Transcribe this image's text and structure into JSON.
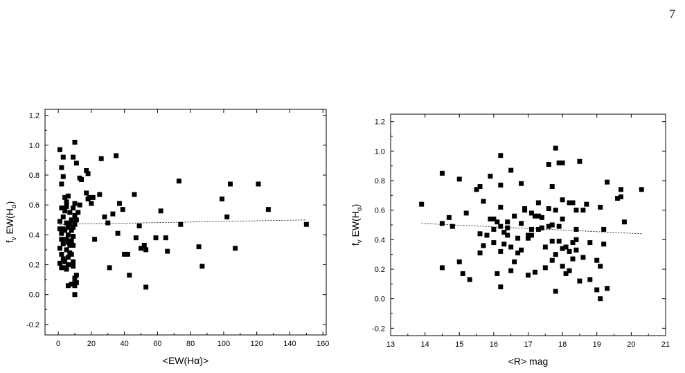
{
  "page": {
    "number": "7"
  },
  "chart_data": [
    {
      "type": "scatter",
      "xlabel": "<EW(Hα)>",
      "ylabel": "f_v EW(H_α)",
      "ylabel_parts": {
        "main": "f",
        "main_sub": "v",
        "mid": " EW(H",
        "sub": "α",
        "end": ")"
      },
      "xlim": [
        -8,
        162
      ],
      "ylim": [
        -0.27,
        1.24
      ],
      "xticks": [
        0,
        20,
        40,
        60,
        80,
        100,
        120,
        140,
        160
      ],
      "yticks": [
        -0.2,
        0.0,
        0.2,
        0.4,
        0.6,
        0.8,
        1.0,
        1.2
      ],
      "xtick_labels": [
        "0",
        "20",
        "40",
        "60",
        "80",
        "100",
        "120",
        "140",
        "160"
      ],
      "ytick_labels": [
        "-0.2",
        "0.0",
        "0.2",
        "0.4",
        "0.6",
        "0.8",
        "1.0",
        "1.2"
      ],
      "fit_line": {
        "style": "dashed",
        "points": [
          [
            1,
            0.47
          ],
          [
            150,
            0.5
          ]
        ]
      },
      "series": [
        {
          "marker": "filled-square",
          "points": [
            [
              1,
              0.97
            ],
            [
              2,
              0.85
            ],
            [
              3,
              0.92
            ],
            [
              3,
              0.79
            ],
            [
              2,
              0.74
            ],
            [
              4,
              0.65
            ],
            [
              2,
              0.58
            ],
            [
              3,
              0.52
            ],
            [
              1,
              0.49
            ],
            [
              1,
              0.44
            ],
            [
              2,
              0.41
            ],
            [
              2,
              0.37
            ],
            [
              3,
              0.34
            ],
            [
              1,
              0.31
            ],
            [
              2,
              0.27
            ],
            [
              3,
              0.24
            ],
            [
              1,
              0.21
            ],
            [
              2,
              0.18
            ],
            [
              4,
              0.18
            ],
            [
              3,
              0.44
            ],
            [
              4,
              0.56
            ],
            [
              5,
              0.62
            ],
            [
              5,
              0.59
            ],
            [
              6,
              0.66
            ],
            [
              5,
              0.48
            ],
            [
              6,
              0.45
            ],
            [
              4,
              0.43
            ],
            [
              6,
              0.4
            ],
            [
              5,
              0.37
            ],
            [
              6,
              0.35
            ],
            [
              7,
              0.33
            ],
            [
              5,
              0.3
            ],
            [
              7,
              0.28
            ],
            [
              6,
              0.25
            ],
            [
              4,
              0.22
            ],
            [
              6,
              0.2
            ],
            [
              5,
              0.17
            ],
            [
              7,
              0.55
            ],
            [
              8,
              0.5
            ],
            [
              7,
              0.47
            ],
            [
              8,
              0.43
            ],
            [
              9,
              0.39
            ],
            [
              8,
              0.36
            ],
            [
              9,
              0.33
            ],
            [
              8,
              0.27
            ],
            [
              9,
              0.22
            ],
            [
              8,
              0.2
            ],
            [
              9,
              0.19
            ],
            [
              10,
              1.02
            ],
            [
              9,
              0.92
            ],
            [
              11,
              0.88
            ],
            [
              10,
              0.61
            ],
            [
              9,
              0.58
            ],
            [
              10,
              0.53
            ],
            [
              11,
              0.5
            ],
            [
              10,
              0.48
            ],
            [
              9,
              0.45
            ],
            [
              10,
              0.47
            ],
            [
              11,
              0.13
            ],
            [
              10,
              0.11
            ],
            [
              10,
              0.09
            ],
            [
              11,
              0.08
            ],
            [
              10,
              0.06
            ],
            [
              10,
              0.0
            ],
            [
              6,
              0.06
            ],
            [
              8,
              0.07
            ],
            [
              12,
              0.55
            ],
            [
              13,
              0.6
            ],
            [
              13,
              0.78
            ],
            [
              14,
              0.77
            ],
            [
              17,
              0.83
            ],
            [
              18,
              0.81
            ],
            [
              17,
              0.68
            ],
            [
              18,
              0.64
            ],
            [
              19,
              0.65
            ],
            [
              20,
              0.61
            ],
            [
              21,
              0.65
            ],
            [
              22,
              0.37
            ],
            [
              25,
              0.67
            ],
            [
              26,
              0.91
            ],
            [
              28,
              0.52
            ],
            [
              30,
              0.48
            ],
            [
              31,
              0.18
            ],
            [
              33,
              0.54
            ],
            [
              35,
              0.93
            ],
            [
              36,
              0.41
            ],
            [
              37,
              0.61
            ],
            [
              39,
              0.57
            ],
            [
              40,
              0.27
            ],
            [
              42,
              0.27
            ],
            [
              43,
              0.13
            ],
            [
              46,
              0.67
            ],
            [
              47,
              0.38
            ],
            [
              49,
              0.46
            ],
            [
              50,
              0.31
            ],
            [
              52,
              0.33
            ],
            [
              53,
              0.3
            ],
            [
              53,
              0.05
            ],
            [
              59,
              0.38
            ],
            [
              62,
              0.56
            ],
            [
              65,
              0.38
            ],
            [
              66,
              0.29
            ],
            [
              73,
              0.76
            ],
            [
              74,
              0.47
            ],
            [
              85,
              0.32
            ],
            [
              87,
              0.19
            ],
            [
              99,
              0.64
            ],
            [
              102,
              0.52
            ],
            [
              104,
              0.74
            ],
            [
              107,
              0.31
            ],
            [
              121,
              0.74
            ],
            [
              127,
              0.57
            ],
            [
              150,
              0.47
            ]
          ]
        }
      ]
    },
    {
      "type": "scatter",
      "xlabel": "<R> mag",
      "ylabel": "f_v EW(H_α)",
      "ylabel_parts": {
        "main": "f",
        "main_sub": "v",
        "mid": " EW(H",
        "sub": "α",
        "end": ")"
      },
      "xlim": [
        13,
        21
      ],
      "ylim": [
        -0.25,
        1.25
      ],
      "xticks": [
        13,
        14,
        15,
        16,
        17,
        18,
        19,
        20,
        21
      ],
      "yticks": [
        -0.2,
        0.0,
        0.2,
        0.4,
        0.6,
        0.8,
        1.0,
        1.2
      ],
      "xtick_labels": [
        "13",
        "14",
        "15",
        "16",
        "17",
        "18",
        "19",
        "20",
        "21"
      ],
      "ytick_labels": [
        "-0.2",
        "0.0",
        "0.2",
        "0.4",
        "0.6",
        "0.8",
        "1.0",
        "1.2"
      ],
      "fit_line": {
        "style": "dashed",
        "points": [
          [
            13.9,
            0.51
          ],
          [
            20.3,
            0.44
          ]
        ]
      },
      "series": [
        {
          "marker": "filled-square",
          "points": [
            [
              13.9,
              0.64
            ],
            [
              14.5,
              0.85
            ],
            [
              14.5,
              0.51
            ],
            [
              14.5,
              0.21
            ],
            [
              14.7,
              0.55
            ],
            [
              14.8,
              0.49
            ],
            [
              15.0,
              0.81
            ],
            [
              15.0,
              0.25
            ],
            [
              15.1,
              0.17
            ],
            [
              15.2,
              0.58
            ],
            [
              15.3,
              0.13
            ],
            [
              15.5,
              0.74
            ],
            [
              15.6,
              0.76
            ],
            [
              15.6,
              0.44
            ],
            [
              15.6,
              0.31
            ],
            [
              15.7,
              0.66
            ],
            [
              15.7,
              0.36
            ],
            [
              15.8,
              0.43
            ],
            [
              15.9,
              0.83
            ],
            [
              15.9,
              0.54
            ],
            [
              16.0,
              0.54
            ],
            [
              16.0,
              0.47
            ],
            [
              16.0,
              0.38
            ],
            [
              16.1,
              0.17
            ],
            [
              16.1,
              0.52
            ],
            [
              16.2,
              0.97
            ],
            [
              16.2,
              0.77
            ],
            [
              16.2,
              0.62
            ],
            [
              16.2,
              0.49
            ],
            [
              16.2,
              0.32
            ],
            [
              16.2,
              0.08
            ],
            [
              16.3,
              0.45
            ],
            [
              16.3,
              0.37
            ],
            [
              16.4,
              0.52
            ],
            [
              16.4,
              0.48
            ],
            [
              16.4,
              0.43
            ],
            [
              16.5,
              0.35
            ],
            [
              16.5,
              0.87
            ],
            [
              16.5,
              0.19
            ],
            [
              16.6,
              0.25
            ],
            [
              16.6,
              0.56
            ],
            [
              16.7,
              0.31
            ],
            [
              16.7,
              0.41
            ],
            [
              16.8,
              0.78
            ],
            [
              16.8,
              0.33
            ],
            [
              16.8,
              0.51
            ],
            [
              16.9,
              0.61
            ],
            [
              16.9,
              0.6
            ],
            [
              17.0,
              0.16
            ],
            [
              17.0,
              0.43
            ],
            [
              17.0,
              0.41
            ],
            [
              17.1,
              0.47
            ],
            [
              17.1,
              0.58
            ],
            [
              17.1,
              0.43
            ],
            [
              17.2,
              0.56
            ],
            [
              17.2,
              0.18
            ],
            [
              17.3,
              0.65
            ],
            [
              17.3,
              0.56
            ],
            [
              17.3,
              0.47
            ],
            [
              17.4,
              0.55
            ],
            [
              17.4,
              0.48
            ],
            [
              17.5,
              0.35
            ],
            [
              17.5,
              0.21
            ],
            [
              17.6,
              0.49
            ],
            [
              17.6,
              0.91
            ],
            [
              17.6,
              0.61
            ],
            [
              17.7,
              0.76
            ],
            [
              17.7,
              0.5
            ],
            [
              17.7,
              0.39
            ],
            [
              17.7,
              0.26
            ],
            [
              17.8,
              1.02
            ],
            [
              17.8,
              0.6
            ],
            [
              17.8,
              0.3
            ],
            [
              17.8,
              0.05
            ],
            [
              17.9,
              0.92
            ],
            [
              17.9,
              0.49
            ],
            [
              17.9,
              0.39
            ],
            [
              18.0,
              0.92
            ],
            [
              18.0,
              0.67
            ],
            [
              18.0,
              0.54
            ],
            [
              18.0,
              0.34
            ],
            [
              18.0,
              0.22
            ],
            [
              18.1,
              0.17
            ],
            [
              18.1,
              0.35
            ],
            [
              18.2,
              0.65
            ],
            [
              18.2,
              0.32
            ],
            [
              18.2,
              0.19
            ],
            [
              18.3,
              0.65
            ],
            [
              18.3,
              0.38
            ],
            [
              18.3,
              0.27
            ],
            [
              18.4,
              0.47
            ],
            [
              18.4,
              0.4
            ],
            [
              18.4,
              0.33
            ],
            [
              18.4,
              0.6
            ],
            [
              18.5,
              0.93
            ],
            [
              18.5,
              0.12
            ],
            [
              18.6,
              0.6
            ],
            [
              18.6,
              0.28
            ],
            [
              18.7,
              0.64
            ],
            [
              18.8,
              0.13
            ],
            [
              18.8,
              0.38
            ],
            [
              19.0,
              0.26
            ],
            [
              19.0,
              0.06
            ],
            [
              19.1,
              0.62
            ],
            [
              19.1,
              0.22
            ],
            [
              19.1,
              0.0
            ],
            [
              19.2,
              0.47
            ],
            [
              19.2,
              0.37
            ],
            [
              19.3,
              0.79
            ],
            [
              19.3,
              0.07
            ],
            [
              19.6,
              0.68
            ],
            [
              19.7,
              0.69
            ],
            [
              19.7,
              0.74
            ],
            [
              19.8,
              0.52
            ],
            [
              20.3,
              0.74
            ]
          ]
        }
      ]
    }
  ]
}
